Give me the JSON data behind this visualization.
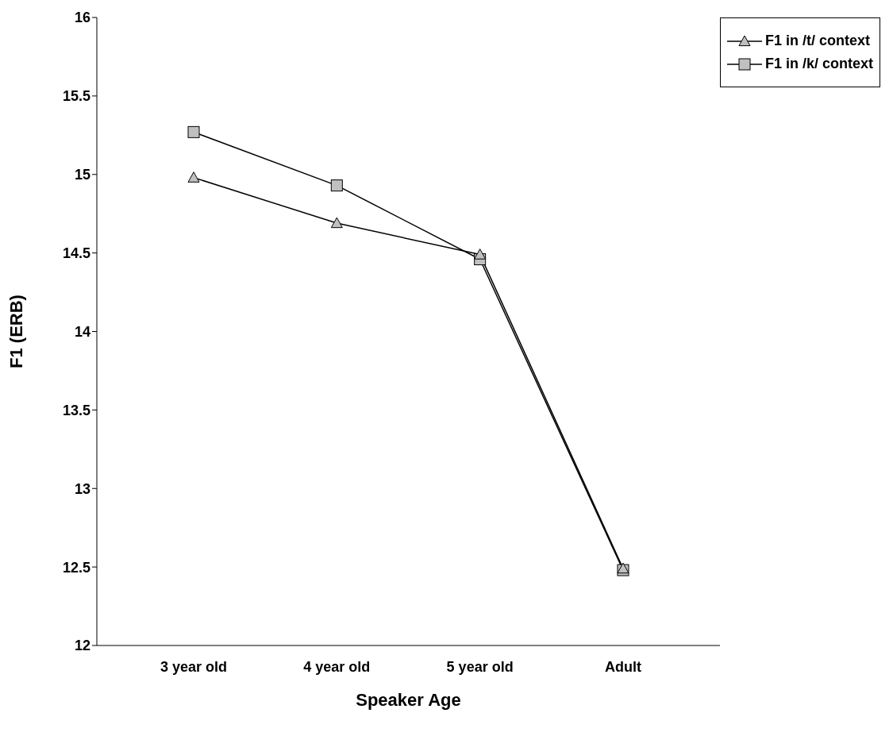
{
  "chart_data": {
    "type": "line",
    "xlabel": "Speaker Age",
    "ylabel": "F1 (ERB)",
    "categories": [
      "3 year old",
      "4 year old",
      "5 year old",
      "Adult"
    ],
    "series": [
      {
        "name": "F1 in /t/ context",
        "color": "#000000",
        "marker": "triangle",
        "values": [
          14.98,
          14.69,
          14.49,
          12.49
        ]
      },
      {
        "name": "F1 in /k/ context",
        "color": "#000000",
        "marker": "square",
        "values": [
          15.27,
          14.93,
          14.46,
          12.48
        ]
      }
    ],
    "ylim": [
      12,
      16
    ],
    "yticks": [
      12,
      12.5,
      13,
      13.5,
      14,
      14.5,
      15,
      15.5,
      16
    ],
    "grid": false,
    "legend": "top right"
  }
}
